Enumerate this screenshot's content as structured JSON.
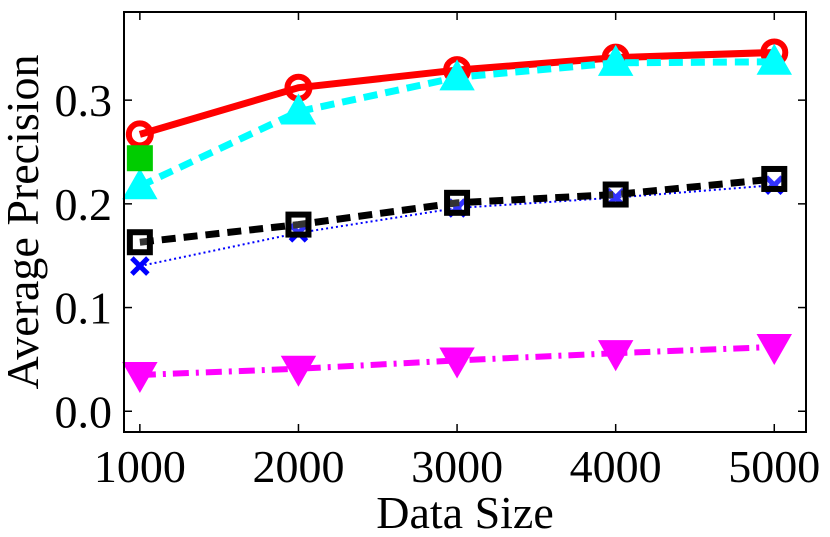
{
  "chart_data": {
    "type": "line",
    "title": "",
    "xlabel": "Data Size",
    "ylabel": "Average Precision",
    "x": [
      1000,
      2000,
      3000,
      4000,
      5000
    ],
    "xlim": [
      900,
      5200
    ],
    "ylim": [
      -0.02,
      0.385
    ],
    "xticks": [
      1000,
      2000,
      3000,
      4000,
      5000
    ],
    "yticks": [
      0.0,
      0.1,
      0.2,
      0.3
    ],
    "xtick_labels": [
      "1000",
      "2000",
      "3000",
      "4000",
      "5000"
    ],
    "ytick_labels": [
      "0.0",
      "0.1",
      "0.2",
      "0.3"
    ],
    "grid": false,
    "legend": "none",
    "series": [
      {
        "values": [
          0.267,
          0.312,
          0.329,
          0.341,
          0.346
        ],
        "color": "#ff0000",
        "line": "solid",
        "marker": "circle"
      },
      {
        "values": [
          0.217,
          0.289,
          0.322,
          0.336,
          0.337
        ],
        "color": "#00ffff",
        "line": "dashed",
        "marker": "triangle-up"
      },
      {
        "values": [
          0.14,
          0.172,
          0.196,
          0.206,
          0.218
        ],
        "color": "#0000ff",
        "line": "dotted",
        "marker": "x"
      },
      {
        "values": [
          0.163,
          0.18,
          0.201,
          0.209,
          0.224
        ],
        "color": "#000000",
        "line": "dashed",
        "marker": "square"
      },
      {
        "values": [
          0.035,
          0.041,
          0.049,
          0.056,
          0.062
        ],
        "color": "#ff00ff",
        "line": "dashdot",
        "marker": "triangle-down"
      },
      {
        "values": [
          0.244,
          null,
          null,
          null,
          null
        ],
        "color": "#00cc00",
        "line": "none",
        "marker": "square"
      }
    ]
  }
}
